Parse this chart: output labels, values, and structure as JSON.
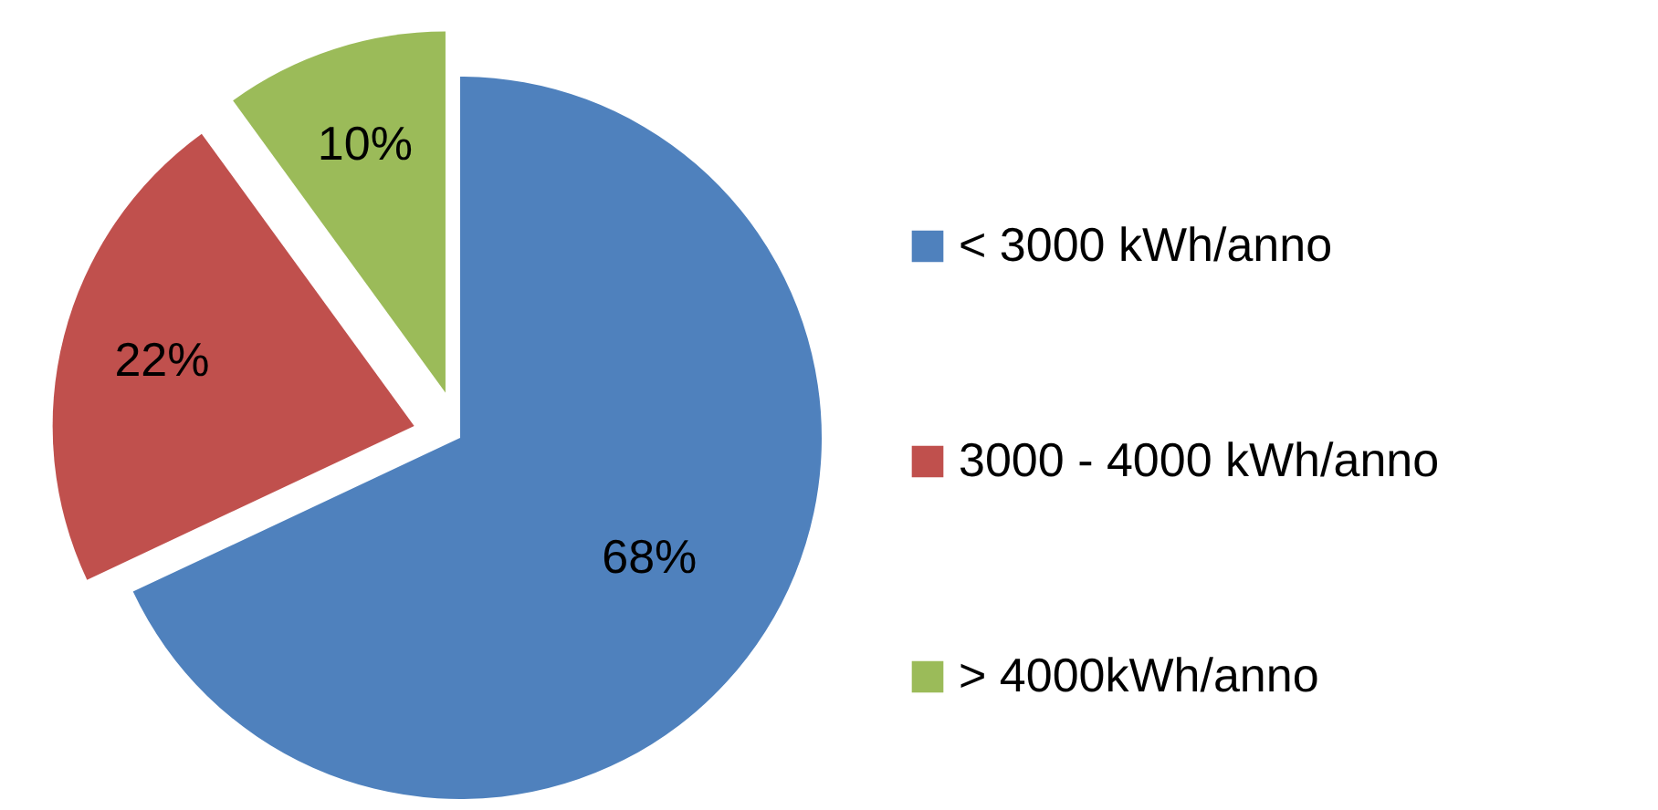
{
  "chart_data": {
    "type": "pie",
    "categories": [
      "< 3000 kWh/anno",
      "3000 -  4000 kWh/anno",
      "> 4000kWh/anno"
    ],
    "values": [
      68,
      22,
      10
    ],
    "colors": [
      "#4f81bd",
      "#c0504d",
      "#9bbb59"
    ],
    "value_labels": [
      "68%",
      "22%",
      "10%"
    ],
    "legend": "right"
  }
}
